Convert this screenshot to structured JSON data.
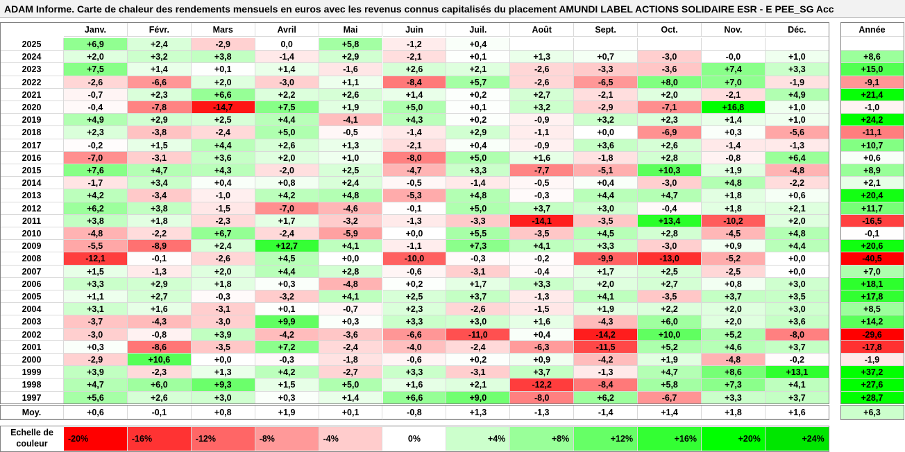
{
  "title": "ADAM Informe. Carte de chaleur des rendements mensuels en euros avec les revenus connus capitalisés du placement AMUNDI LABEL ACTIONS SOLIDAIRE ESR - E PEE_SG Acc",
  "chart_data": {
    "type": "heatmap",
    "columns": [
      "Janv.",
      "Févr.",
      "Mars",
      "Avril",
      "Mai",
      "Juin",
      "Juil.",
      "Août",
      "Sept.",
      "Oct.",
      "Nov.",
      "Déc."
    ],
    "year_header": "Année",
    "avg_label": "Moy.",
    "rows": [
      {
        "year": "2025",
        "values": [
          "+6,9",
          "+2,4",
          "-2,9",
          "0,0",
          "+5,8",
          "-1,2",
          "+0,4",
          "",
          "",
          "",
          "",
          ""
        ],
        "annual": ""
      },
      {
        "year": "2024",
        "values": [
          "+2,0",
          "+3,2",
          "+3,8",
          "-1,4",
          "+2,9",
          "-2,1",
          "+0,1",
          "+1,3",
          "+0,7",
          "-3,0",
          "-0,0",
          "+1,0"
        ],
        "annual": "+8,6"
      },
      {
        "year": "2023",
        "values": [
          "+7,5",
          "+1,4",
          "+0,1",
          "+1,4",
          "-1,6",
          "+2,6",
          "+2,1",
          "-2,6",
          "-3,3",
          "-3,6",
          "+7,4",
          "+3,3"
        ],
        "annual": "+15,0"
      },
      {
        "year": "2022",
        "values": [
          "-2,6",
          "-6,6",
          "+2,0",
          "-3,0",
          "+1,1",
          "-8,4",
          "+5,7",
          "-2,6",
          "-6,5",
          "+8,0",
          "+7,0",
          "-1,9"
        ],
        "annual": "-9,1"
      },
      {
        "year": "2021",
        "values": [
          "-0,7",
          "+2,3",
          "+6,6",
          "+2,2",
          "+2,6",
          "+1,4",
          "+0,2",
          "+2,7",
          "-2,1",
          "+2,0",
          "-2,1",
          "+4,9"
        ],
        "annual": "+21,4"
      },
      {
        "year": "2020",
        "values": [
          "-0,4",
          "-7,8",
          "-14,7",
          "+7,5",
          "+1,9",
          "+5,0",
          "+0,1",
          "+3,2",
          "-2,9",
          "-7,1",
          "+16,8",
          "+1,0"
        ],
        "annual": "-1,0"
      },
      {
        "year": "2019",
        "values": [
          "+4,9",
          "+2,9",
          "+2,5",
          "+4,4",
          "-4,1",
          "+4,3",
          "+0,2",
          "-0,9",
          "+3,2",
          "+2,3",
          "+1,4",
          "+1,0"
        ],
        "annual": "+24,2"
      },
      {
        "year": "2018",
        "values": [
          "+2,3",
          "-3,8",
          "-2,4",
          "+5,0",
          "-0,5",
          "-1,4",
          "+2,9",
          "-1,1",
          "+0,0",
          "-6,9",
          "+0,3",
          "-5,6"
        ],
        "annual": "-11,1"
      },
      {
        "year": "2017",
        "values": [
          "-0,2",
          "+1,5",
          "+4,4",
          "+2,6",
          "+1,3",
          "-2,1",
          "+0,4",
          "-0,9",
          "+3,6",
          "+2,6",
          "-1,4",
          "-1,3"
        ],
        "annual": "+10,7"
      },
      {
        "year": "2016",
        "values": [
          "-7,0",
          "-3,1",
          "+3,6",
          "+2,0",
          "+1,0",
          "-8,0",
          "+5,0",
          "+1,6",
          "-1,8",
          "+2,8",
          "-0,8",
          "+6,4"
        ],
        "annual": "+0,6"
      },
      {
        "year": "2015",
        "values": [
          "+7,6",
          "+4,7",
          "+4,3",
          "-2,0",
          "+2,5",
          "-4,7",
          "+3,3",
          "-7,7",
          "-5,1",
          "+10,3",
          "+1,9",
          "-4,8"
        ],
        "annual": "+8,9"
      },
      {
        "year": "2014",
        "values": [
          "-1,7",
          "+3,4",
          "+0,4",
          "+0,8",
          "+2,4",
          "-0,5",
          "-1,4",
          "-0,5",
          "+0,4",
          "-3,0",
          "+4,8",
          "-2,2"
        ],
        "annual": "+2,1"
      },
      {
        "year": "2013",
        "values": [
          "+4,2",
          "-3,4",
          "-1,0",
          "+4,2",
          "+4,8",
          "-5,3",
          "+4,8",
          "-0,3",
          "+4,4",
          "+4,7",
          "+1,8",
          "+0,6"
        ],
        "annual": "+20,4"
      },
      {
        "year": "2012",
        "values": [
          "+6,2",
          "+3,8",
          "-1,5",
          "-7,0",
          "-4,6",
          "-0,1",
          "+5,0",
          "+3,7",
          "+3,0",
          "-0,4",
          "+1,8",
          "+2,1"
        ],
        "annual": "+11,7"
      },
      {
        "year": "2011",
        "values": [
          "+3,8",
          "+1,8",
          "-2,3",
          "+1,7",
          "-3,2",
          "-1,3",
          "-3,3",
          "-14,1",
          "-3,5",
          "+13,4",
          "-10,2",
          "+2,0"
        ],
        "annual": "-16,5"
      },
      {
        "year": "2010",
        "values": [
          "-4,8",
          "-2,2",
          "+6,7",
          "-2,4",
          "-5,9",
          "+0,0",
          "+5,5",
          "-3,5",
          "+4,5",
          "+2,8",
          "-4,5",
          "+4,8"
        ],
        "annual": "-0,1"
      },
      {
        "year": "2009",
        "values": [
          "-5,5",
          "-8,9",
          "+2,4",
          "+12,7",
          "+4,1",
          "-1,1",
          "+7,3",
          "+4,1",
          "+3,3",
          "-3,0",
          "+0,9",
          "+4,4"
        ],
        "annual": "+20,6"
      },
      {
        "year": "2008",
        "values": [
          "-12,1",
          "-0,1",
          "-2,6",
          "+4,5",
          "+0,0",
          "-10,0",
          "-0,3",
          "-0,2",
          "-9,9",
          "-13,0",
          "-5,2",
          "+0,0"
        ],
        "annual": "-40,5"
      },
      {
        "year": "2007",
        "values": [
          "+1,5",
          "-1,3",
          "+2,0",
          "+4,4",
          "+2,8",
          "-0,6",
          "-3,1",
          "-0,4",
          "+1,7",
          "+2,5",
          "-2,5",
          "+0,0"
        ],
        "annual": "+7,0"
      },
      {
        "year": "2006",
        "values": [
          "+3,3",
          "+2,9",
          "+1,8",
          "+0,3",
          "-4,8",
          "+0,2",
          "+1,7",
          "+3,3",
          "+2,0",
          "+2,7",
          "+0,8",
          "+3,0"
        ],
        "annual": "+18,1"
      },
      {
        "year": "2005",
        "values": [
          "+1,1",
          "+2,7",
          "-0,3",
          "-3,2",
          "+4,1",
          "+2,5",
          "+3,7",
          "-1,3",
          "+4,1",
          "-3,5",
          "+3,7",
          "+3,5"
        ],
        "annual": "+17,8"
      },
      {
        "year": "2004",
        "values": [
          "+3,1",
          "+1,6",
          "-3,1",
          "+0,1",
          "-0,7",
          "+2,3",
          "-2,6",
          "-1,5",
          "+1,9",
          "+2,2",
          "+2,0",
          "+3,0"
        ],
        "annual": "+8,5"
      },
      {
        "year": "2003",
        "values": [
          "-3,7",
          "-4,3",
          "-3,0",
          "+9,9",
          "+0,3",
          "+3,3",
          "+3,0",
          "+1,6",
          "-4,3",
          "+6,0",
          "+2,0",
          "+3,6"
        ],
        "annual": "+14,2"
      },
      {
        "year": "2002",
        "values": [
          "-3,0",
          "-0,8",
          "+3,9",
          "-4,2",
          "-3,6",
          "-6,6",
          "-11,0",
          "+0,4",
          "-14,2",
          "+10,0",
          "+5,2",
          "-8,0"
        ],
        "annual": "-29,6"
      },
      {
        "year": "2001",
        "values": [
          "+0,3",
          "-8,6",
          "-3,5",
          "+7,2",
          "-2,4",
          "-4,0",
          "-2,4",
          "-6,3",
          "-11,5",
          "+5,2",
          "+4,6",
          "+3,7"
        ],
        "annual": "-17,8"
      },
      {
        "year": "2000",
        "values": [
          "-2,9",
          "+10,6",
          "+0,0",
          "-0,3",
          "-1,8",
          "-0,6",
          "+0,2",
          "+0,9",
          "-4,2",
          "+1,9",
          "-4,8",
          "-0,2"
        ],
        "annual": "-1,9"
      },
      {
        "year": "1999",
        "values": [
          "+3,9",
          "-2,3",
          "+1,3",
          "+4,2",
          "-2,7",
          "+3,3",
          "-3,1",
          "+3,7",
          "-1,3",
          "+4,7",
          "+8,6",
          "+13,1"
        ],
        "annual": "+37,2"
      },
      {
        "year": "1998",
        "values": [
          "+4,7",
          "+6,0",
          "+9,3",
          "+1,5",
          "+5,0",
          "+1,6",
          "+2,1",
          "-12,2",
          "-8,4",
          "+5,8",
          "+7,3",
          "+4,1"
        ],
        "annual": "+27,6"
      },
      {
        "year": "1997",
        "values": [
          "+5,6",
          "+2,6",
          "+3,0",
          "+0,3",
          "+1,4",
          "+6,6",
          "+9,0",
          "-8,0",
          "+6,2",
          "-6,7",
          "+3,3",
          "+3,7"
        ],
        "annual": "+28,7"
      }
    ],
    "averages": [
      "+0,6",
      "-0,1",
      "+0,8",
      "+1,9",
      "+0,1",
      "-0,8",
      "+1,3",
      "-1,3",
      "-1,4",
      "+1,4",
      "+1,8",
      "+1,6"
    ],
    "average_annual": "+6,3",
    "legend": {
      "label_line1": "Echelle de",
      "label_line2": "couleur",
      "steps": [
        {
          "label": "-20%",
          "value": -20,
          "color": "#ff0000"
        },
        {
          "label": "-16%",
          "value": -16,
          "color": "#ff3333"
        },
        {
          "label": "-12%",
          "value": -12,
          "color": "#ff6666"
        },
        {
          "label": "-8%",
          "value": -8,
          "color": "#ff9999"
        },
        {
          "label": "-4%",
          "value": -4,
          "color": "#ffcccc"
        },
        {
          "label": "0%",
          "value": 0,
          "color": "#ffffff"
        },
        {
          "label": "+4%",
          "value": 4,
          "color": "#ccffcc"
        },
        {
          "label": "+8%",
          "value": 8,
          "color": "#99ff99"
        },
        {
          "label": "+12%",
          "value": 12,
          "color": "#66ff66"
        },
        {
          "label": "+16%",
          "value": 16,
          "color": "#33ff33"
        },
        {
          "label": "+20%",
          "value": 20,
          "color": "#00ff00"
        },
        {
          "label": "+24%",
          "value": 24,
          "color": "#00e600"
        }
      ]
    }
  }
}
